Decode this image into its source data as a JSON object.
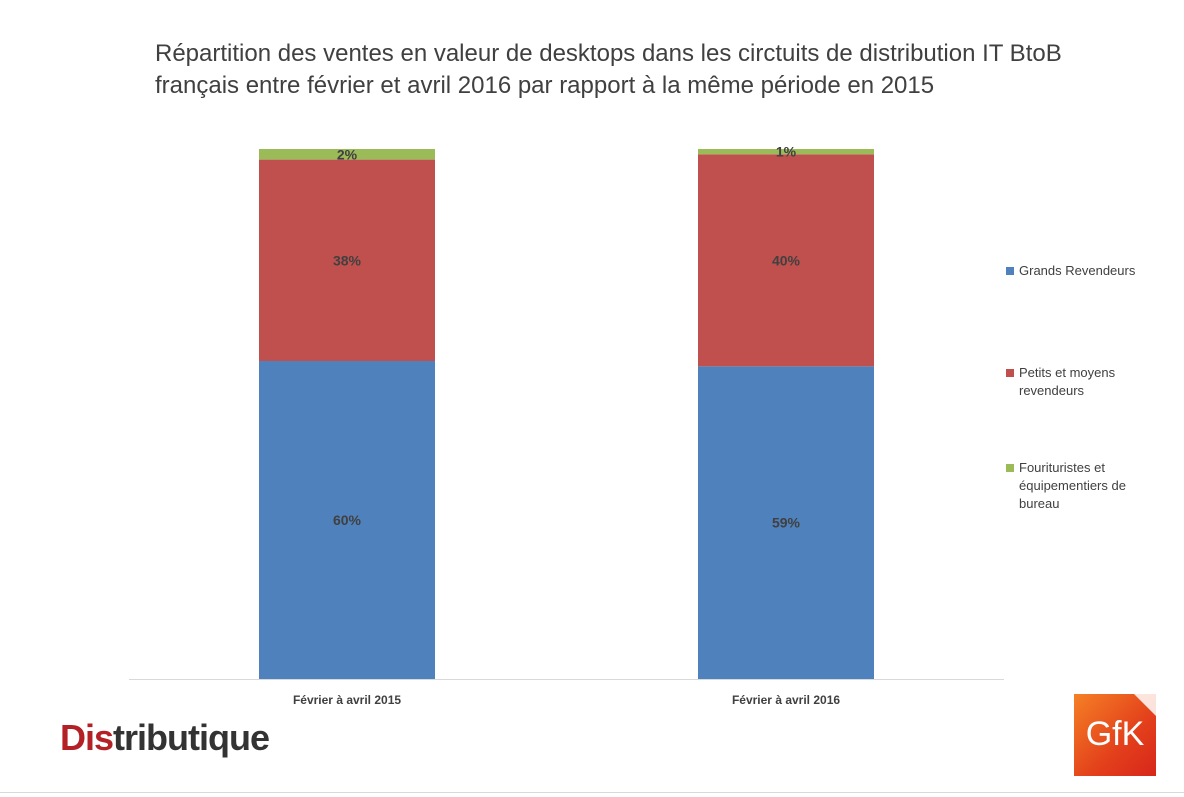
{
  "chart_data": {
    "type": "bar",
    "stacked": true,
    "title_lines": [
      "Répartition des ventes en valeur de desktops dans les circtuits de distribution IT BtoB",
      "français entre février et avril 2016 par rapport à la même période en 2015"
    ],
    "categories": [
      "Février à avril 2015",
      "Février à avril 2016"
    ],
    "series": [
      {
        "name": "Grands Revendeurs",
        "values": [
          60,
          59
        ],
        "labels": [
          "60%",
          "59%"
        ],
        "color": "#4f81bd"
      },
      {
        "name": "Petits et moyens revendeurs",
        "values": [
          38,
          40
        ],
        "labels": [
          "38%",
          "40%"
        ],
        "color": "#c0504d"
      },
      {
        "name": "Fourituristes et équipementiers de bureau",
        "values": [
          2,
          1
        ],
        "labels": [
          "2%",
          "1%"
        ],
        "color": "#9bbb59"
      }
    ],
    "legend_labels": [
      [
        "Grands Revendeurs"
      ],
      [
        "Petits et moyens",
        "revendeurs"
      ],
      [
        "Fourituristes et",
        "équipementiers de",
        "bureau"
      ]
    ],
    "ylim": [
      0,
      100
    ],
    "grid": false,
    "legend_position": "right",
    "unit": "%"
  },
  "branding": {
    "left_logo_accent": "Dis",
    "left_logo_rest": "tributique",
    "right_logo": "GfK"
  }
}
